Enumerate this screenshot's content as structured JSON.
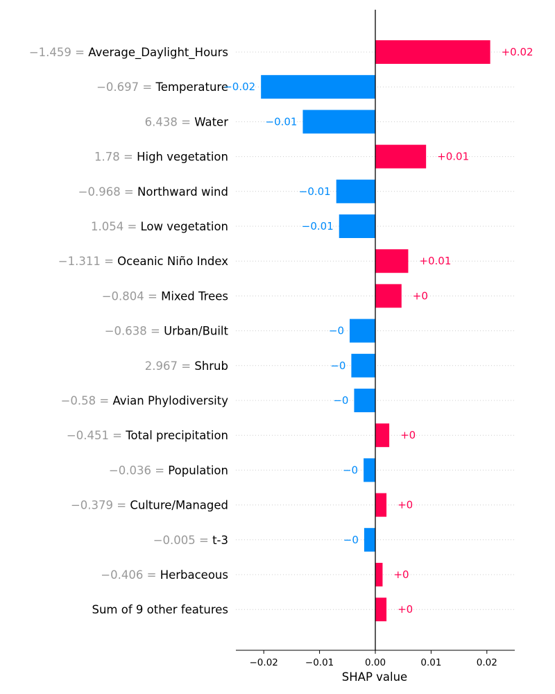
{
  "chart_data": {
    "type": "bar",
    "orientation": "horizontal",
    "xlabel": "SHAP value",
    "xlim": [
      -0.025,
      0.025
    ],
    "xticks": [
      {
        "value": -0.02,
        "label": "−0.02"
      },
      {
        "value": -0.01,
        "label": "−0.01"
      },
      {
        "value": 0.0,
        "label": "0.00"
      },
      {
        "value": 0.01,
        "label": "0.01"
      },
      {
        "value": 0.02,
        "label": "0.02"
      }
    ],
    "colors": {
      "positive": "#ff0051",
      "negative": "#008bfb",
      "feature_value": "#999999",
      "feature_name": "#000000"
    },
    "rows": [
      {
        "feature_value": "−1.459 = ",
        "feature": "Average_Daylight_Hours",
        "shap": 0.0206,
        "label": "+0.02"
      },
      {
        "feature_value": "−0.697 = ",
        "feature": "Temperature",
        "shap": -0.0205,
        "label": "−0.02"
      },
      {
        "feature_value": "6.438 = ",
        "feature": "Water",
        "shap": -0.013,
        "label": "−0.01"
      },
      {
        "feature_value": "1.78 = ",
        "feature": "High vegetation",
        "shap": 0.0091,
        "label": "+0.01"
      },
      {
        "feature_value": "−0.968 = ",
        "feature": "Northward wind",
        "shap": -0.007,
        "label": "−0.01"
      },
      {
        "feature_value": "1.054 = ",
        "feature": "Low vegetation",
        "shap": -0.0065,
        "label": "−0.01"
      },
      {
        "feature_value": "−1.311 = ",
        "feature": "Oceanic Niño Index",
        "shap": 0.0059,
        "label": "+0.01"
      },
      {
        "feature_value": "−0.804 = ",
        "feature": "Mixed Trees",
        "shap": 0.0047,
        "label": "+0"
      },
      {
        "feature_value": "−0.638 = ",
        "feature": "Urban/Built",
        "shap": -0.0046,
        "label": "−0"
      },
      {
        "feature_value": "2.967 = ",
        "feature": "Shrub",
        "shap": -0.0043,
        "label": "−0"
      },
      {
        "feature_value": "−0.58 = ",
        "feature": "Avian Phylodiversity",
        "shap": -0.0038,
        "label": "−0"
      },
      {
        "feature_value": "−0.451 = ",
        "feature": "Total precipitation",
        "shap": 0.0025,
        "label": "+0"
      },
      {
        "feature_value": "−0.036 = ",
        "feature": "Population",
        "shap": -0.0021,
        "label": "−0"
      },
      {
        "feature_value": "−0.379 = ",
        "feature": "Culture/Managed",
        "shap": 0.002,
        "label": "+0"
      },
      {
        "feature_value": "−0.005 = ",
        "feature": "t-3",
        "shap": -0.002,
        "label": "−0"
      },
      {
        "feature_value": "−0.406 = ",
        "feature": "Herbaceous",
        "shap": 0.0013,
        "label": "+0"
      },
      {
        "feature_value": "",
        "feature": "Sum of 9 other features",
        "shap": 0.002,
        "label": "+0"
      }
    ]
  }
}
